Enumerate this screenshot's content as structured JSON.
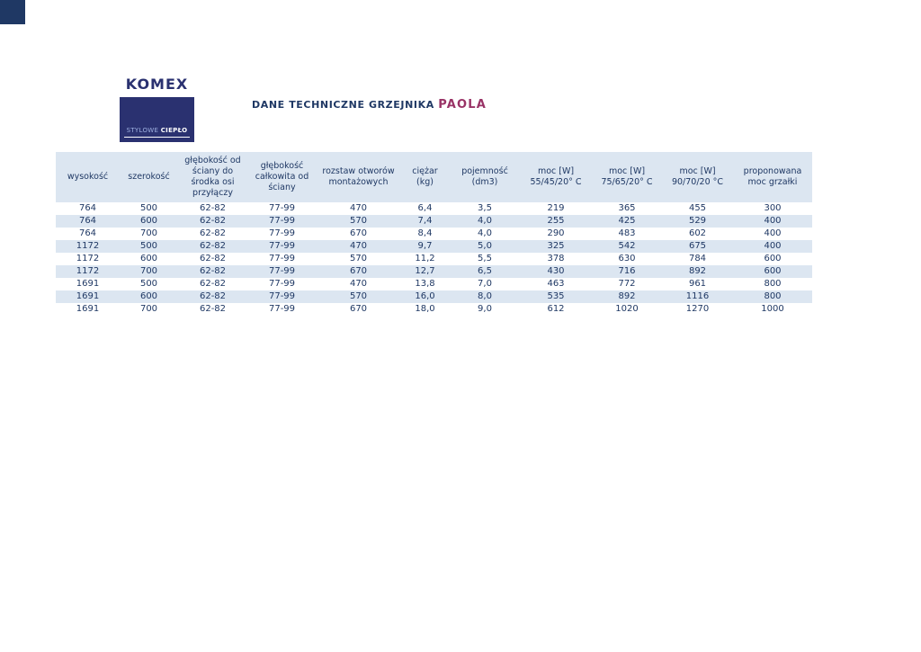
{
  "colors": {
    "navy": "#1f3864",
    "stripe": "#dce6f1",
    "plum": "#993366",
    "logo-navy": "#2a3170",
    "corner": "#1f3864",
    "tagline-light": "#9fb1e1"
  },
  "logo": {
    "brand": "KOMEX",
    "tagline_light": "STYLOWE",
    "tagline_bold": "CIEPŁO"
  },
  "title": {
    "main": "DANE TECHNICZNE GRZEJNIKA",
    "highlight": "PAOLA"
  },
  "table": {
    "headers": [
      "wysokość",
      "szerokość",
      "głębokość od ściany do środka osi przyłączy",
      "głębokość całkowita od ściany",
      "rozstaw otworów montażowych",
      "ciężar (kg)",
      "pojemność (dm3)",
      "moc [W] 55/45/20° C",
      "moc [W] 75/65/20° C",
      "moc [W] 90/70/20 °C",
      "proponowana moc grzałki"
    ],
    "rows": [
      [
        "764",
        "500",
        "62-82",
        "77-99",
        "470",
        "6,4",
        "3,5",
        "219",
        "365",
        "455",
        "300"
      ],
      [
        "764",
        "600",
        "62-82",
        "77-99",
        "570",
        "7,4",
        "4,0",
        "255",
        "425",
        "529",
        "400"
      ],
      [
        "764",
        "700",
        "62-82",
        "77-99",
        "670",
        "8,4",
        "4,0",
        "290",
        "483",
        "602",
        "400"
      ],
      [
        "1172",
        "500",
        "62-82",
        "77-99",
        "470",
        "9,7",
        "5,0",
        "325",
        "542",
        "675",
        "400"
      ],
      [
        "1172",
        "600",
        "62-82",
        "77-99",
        "570",
        "11,2",
        "5,5",
        "378",
        "630",
        "784",
        "600"
      ],
      [
        "1172",
        "700",
        "62-82",
        "77-99",
        "670",
        "12,7",
        "6,5",
        "430",
        "716",
        "892",
        "600"
      ],
      [
        "1691",
        "500",
        "62-82",
        "77-99",
        "470",
        "13,8",
        "7,0",
        "463",
        "772",
        "961",
        "800"
      ],
      [
        "1691",
        "600",
        "62-82",
        "77-99",
        "570",
        "16,0",
        "8,0",
        "535",
        "892",
        "1116",
        "800"
      ],
      [
        "1691",
        "700",
        "62-82",
        "77-99",
        "670",
        "18,0",
        "9,0",
        "612",
        "1020",
        "1270",
        "1000"
      ]
    ]
  }
}
